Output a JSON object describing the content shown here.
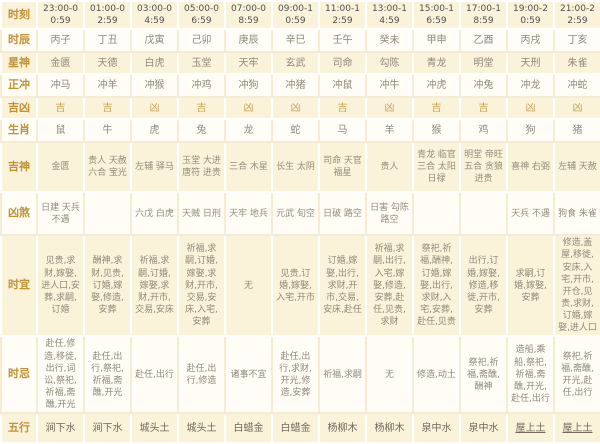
{
  "table": {
    "rows": [
      {
        "key": "shike",
        "label": "时刻",
        "cells": [
          "23:00-00:59",
          "01:00-02:59",
          "03:00-04:59",
          "05:00-06:59",
          "07:00-08:59",
          "09:00-10:59",
          "11:00-12:59",
          "13:00-14:59",
          "15:00-16:59",
          "17:00-18:59",
          "19:00-20:59",
          "21:00-22:59"
        ]
      },
      {
        "key": "shichen",
        "label": "时辰",
        "cells": [
          "丙子",
          "丁丑",
          "戊寅",
          "己卯",
          "庚辰",
          "辛巳",
          "壬午",
          "癸未",
          "甲申",
          "乙酉",
          "丙戌",
          "丁亥"
        ]
      },
      {
        "key": "xingshen",
        "label": "星神",
        "cells": [
          "金匮",
          "天德",
          "白虎",
          "玉堂",
          "天牢",
          "玄武",
          "司命",
          "勾陈",
          "青龙",
          "明堂",
          "天刑",
          "朱雀"
        ]
      },
      {
        "key": "zhengchong",
        "label": "正冲",
        "cells": [
          "冲马",
          "冲羊",
          "冲猴",
          "冲鸡",
          "冲狗",
          "冲猪",
          "冲鼠",
          "冲牛",
          "冲虎",
          "冲兔",
          "冲龙",
          "冲蛇"
        ]
      },
      {
        "key": "jixiong",
        "label": "吉凶",
        "cells": [
          "吉",
          "吉",
          "凶",
          "吉",
          "凶",
          "凶",
          "吉",
          "凶",
          "吉",
          "吉",
          "凶",
          "凶"
        ]
      },
      {
        "key": "shengxiao",
        "label": "生肖",
        "cells": [
          "鼠",
          "牛",
          "虎",
          "兔",
          "龙",
          "蛇",
          "马",
          "羊",
          "猴",
          "鸡",
          "狗",
          "猪"
        ]
      },
      {
        "key": "jishen",
        "label": "吉神",
        "cells": [
          "金匮",
          "贵人 天赦 六合 宝光",
          "左辅 驿马",
          "玉堂 大进 唐符 进贵",
          "三合 木星",
          "长生 太阴",
          "司命 天官 福星",
          "贵人",
          "青龙 临官 三合 太阳 日禄",
          "明堂 帝旺 五合 贪狼 进贵",
          "喜神 右弼",
          "左辅 天赦"
        ]
      },
      {
        "key": "xiongsha",
        "label": "凶煞",
        "cells": [
          "日建 天兵 不遇",
          "",
          "六戊 白虎",
          "天贼 日刑",
          "天牢 地兵",
          "元武 旬空",
          "日破 路空",
          "日害 勾陈 路空",
          "",
          "",
          "天兵 不遇",
          "狗食 朱雀"
        ]
      },
      {
        "key": "shiyi",
        "label": "时宜",
        "cells": [
          "见贵,求财,嫁娶,进人口,安葬,求嗣,订婚",
          "酬神,求财,见贵,订婚,嫁娶,修造,安葬",
          "祈福,求嗣,订婚,嫁娶,求财,开市,交易,安床",
          "祈福,求嗣,订婚,嫁娶,求财,开市,交易,安床,入宅,安葬",
          "无",
          "见贵,订婚,嫁娶,入宅,开市",
          "订婚,嫁娶,出行,求财,开市,交易,安床,赴任",
          "祈福,求嗣,出行,入宅,嫁娶,修造,安葬,赴任,见贵,求财",
          "祭祀,祈福,酬神,订婚,嫁娶,出行,求财,入宅,安葬,赴任,见贵",
          "出行,订婚,嫁娶,修造,移徙,开市,安葬",
          "求嗣,订婚,嫁娶,安葬",
          "修造,盖屋,移徙,安床,入宅,开市,开仓,见贵,求财,订婚,嫁娶,进人口"
        ]
      },
      {
        "key": "shiji",
        "label": "时忌",
        "cells": [
          "赴任,修造,移徙,出行,词讼,祭祀,祈福,斋醮,开光",
          "赴任,出行,祭祀,祈福,斋醮,开光",
          "赴任,出行",
          "赴任,出行,修造",
          "诸事不宜",
          "赴任,出行,求财,开光,修造,安葬",
          "祈福,求嗣",
          "无",
          "修造,动土",
          "祭祀,祈福,斋醮,酬神",
          "造船,乘船,祭祀,祈福,斋醮,开光,赴任,出行",
          "祭祀,祈福,斋醮,开光,赴任,出行"
        ]
      },
      {
        "key": "wuxing",
        "label": "五行",
        "underline_last_two": true,
        "cells": [
          "涧下水",
          "涧下水",
          "城头土",
          "城头土",
          "白蜡金",
          "白蜡金",
          "杨柳木",
          "杨柳木",
          "泉中水",
          "泉中水",
          "屋上土",
          "屋上土"
        ]
      }
    ]
  },
  "colors": {
    "row_cream": "#fbf2da",
    "row_ivory": "#fffdf6",
    "label_text": "#c19136",
    "time_text": "#4f4f4f",
    "data_text": "#8f897b",
    "jixiong_text": "#c5a153"
  }
}
